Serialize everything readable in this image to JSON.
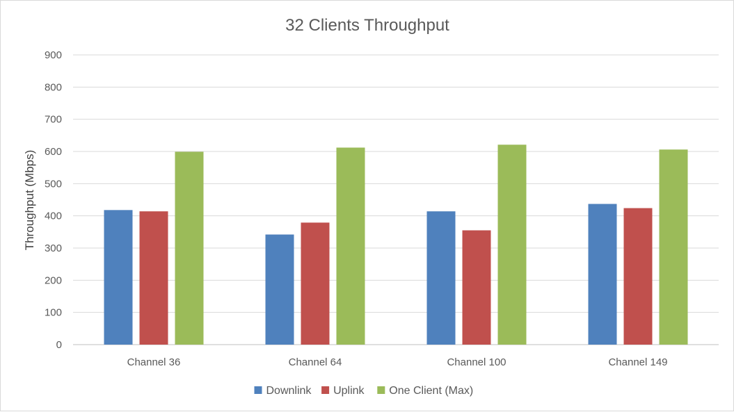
{
  "chart_data": {
    "type": "bar",
    "title": "32 Clients Throughput",
    "xlabel": "",
    "ylabel": "Throughput (Mbps)",
    "ylim": [
      0,
      900
    ],
    "yticks": [
      0,
      100,
      200,
      300,
      400,
      500,
      600,
      700,
      800,
      900
    ],
    "categories": [
      "Channel 36",
      "Channel 64",
      "Channel 100",
      "Channel 149"
    ],
    "series": [
      {
        "name": "Downlink",
        "color": "#4f81bd",
        "values": [
          418,
          342,
          414,
          437
        ]
      },
      {
        "name": "Uplink",
        "color": "#c0504d",
        "values": [
          414,
          379,
          355,
          424
        ]
      },
      {
        "name": "One Client (Max)",
        "color": "#9bbb59",
        "values": [
          599,
          612,
          621,
          606
        ]
      }
    ],
    "grid": true,
    "legend_position": "bottom"
  }
}
